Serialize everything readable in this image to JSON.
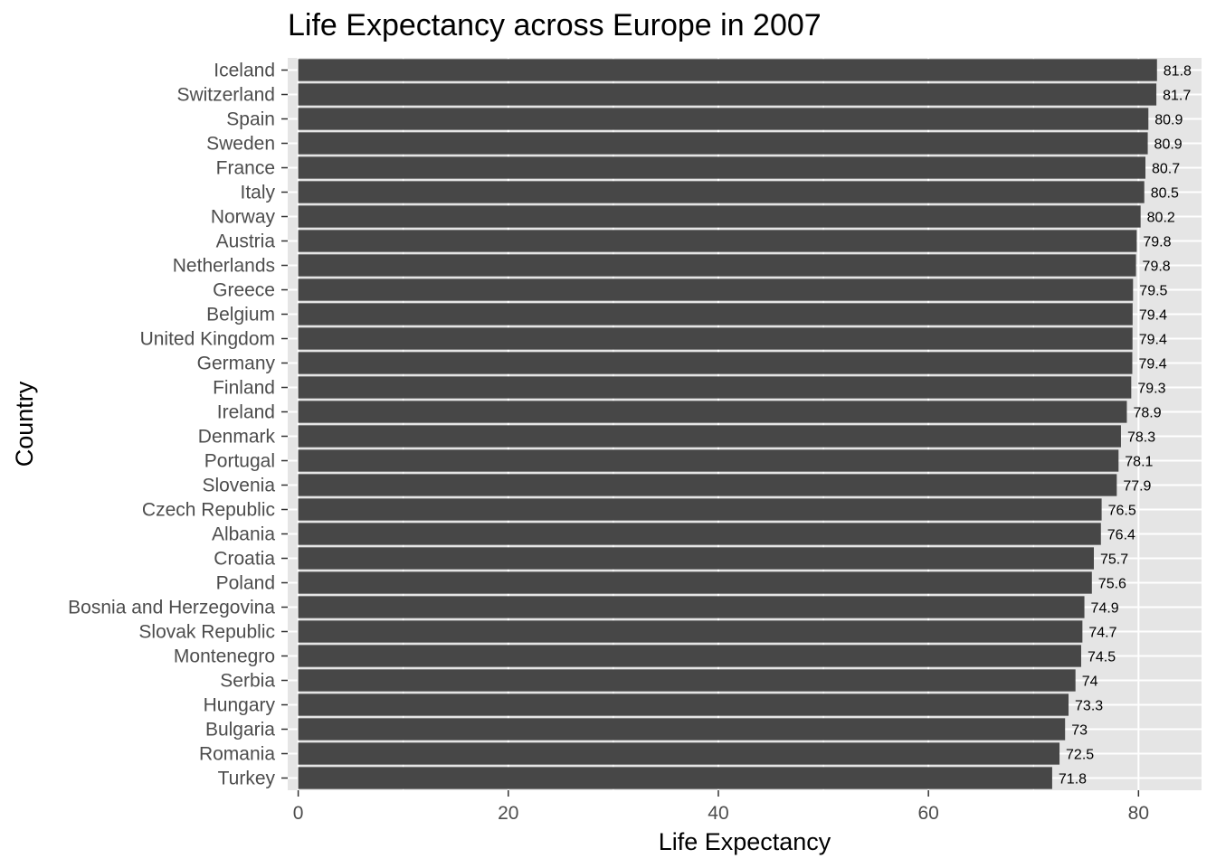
{
  "chart_data": {
    "type": "bar",
    "orientation": "horizontal",
    "title": "Life Expectancy across Europe  in 2007",
    "xlabel": "Life Expectancy",
    "ylabel": "Country",
    "xlim": [
      -1,
      86
    ],
    "xticks": [
      0,
      20,
      40,
      60,
      80
    ],
    "grid": true,
    "legend": "none",
    "colors": {
      "panel_background": "#e5e5e5",
      "gridline": "#ffffff",
      "bar": "#474747",
      "tick_text": "#4d4d4d"
    },
    "categories": [
      "Iceland",
      "Switzerland",
      "Spain",
      "Sweden",
      "France",
      "Italy",
      "Norway",
      "Austria",
      "Netherlands",
      "Greece",
      "Belgium",
      "United Kingdom",
      "Germany",
      "Finland",
      "Ireland",
      "Denmark",
      "Portugal",
      "Slovenia",
      "Czech Republic",
      "Albania",
      "Croatia",
      "Poland",
      "Bosnia and Herzegovina",
      "Slovak Republic",
      "Montenegro",
      "Serbia",
      "Hungary",
      "Bulgaria",
      "Romania",
      "Turkey"
    ],
    "values": [
      81.76,
      81.7,
      80.94,
      80.88,
      80.66,
      80.55,
      80.2,
      79.83,
      79.76,
      79.48,
      79.44,
      79.43,
      79.41,
      79.31,
      78.89,
      78.33,
      78.1,
      77.93,
      76.49,
      76.42,
      75.75,
      75.56,
      74.85,
      74.66,
      74.54,
      74.0,
      73.34,
      73.01,
      72.48,
      71.78
    ],
    "data_labels": [
      "81.8",
      "81.7",
      "80.9",
      "80.9",
      "80.7",
      "80.5",
      "80.2",
      "79.8",
      "79.8",
      "79.5",
      "79.4",
      "79.4",
      "79.4",
      "79.3",
      "78.9",
      "78.3",
      "78.1",
      "77.9",
      "76.5",
      "76.4",
      "75.7",
      "75.6",
      "74.9",
      "74.7",
      "74.5",
      "74",
      "73.3",
      "73",
      "72.5",
      "71.8"
    ]
  }
}
